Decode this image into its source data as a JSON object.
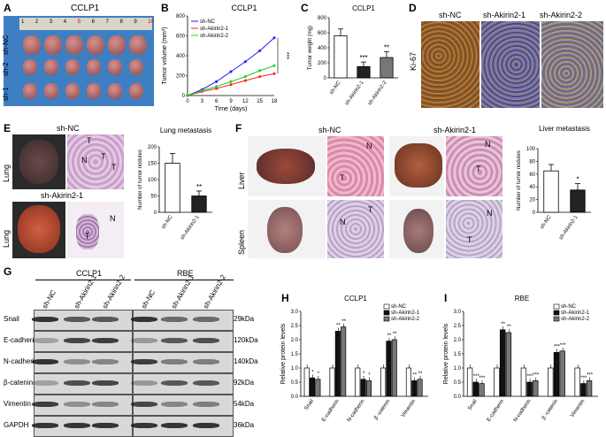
{
  "panels": {
    "A": {
      "letter": "A",
      "title": "CCLP1",
      "row_labels": [
        "sh-NC",
        "sh-2",
        "sh-1"
      ],
      "ruler_numbers": [
        "1",
        "2",
        "3",
        "4",
        "5",
        "6",
        "7",
        "8",
        "9",
        "10"
      ]
    },
    "B": {
      "letter": "B",
      "title": "CCLP1",
      "xlabel": "Time (days)",
      "ylabel": "Tumor volume (mm³)",
      "significance": "***",
      "chart_data": {
        "type": "line",
        "x": [
          0,
          3,
          6,
          9,
          12,
          15,
          18
        ],
        "xticks": [
          "0",
          "3",
          "6",
          "9",
          "12",
          "15",
          "18"
        ],
        "yticks": [
          "0",
          "200",
          "400",
          "600",
          "800"
        ],
        "ylim": [
          0,
          800
        ],
        "series": [
          {
            "name": "sh-NC",
            "color": "#1a1aff",
            "values": [
              0,
              60,
              140,
              240,
              340,
              450,
              580
            ]
          },
          {
            "name": "sh-Akirin2-1",
            "color": "#ff2020",
            "values": [
              0,
              40,
              70,
              110,
              150,
              190,
              220
            ]
          },
          {
            "name": "sh-Akirin2-2",
            "color": "#22cc22",
            "values": [
              0,
              50,
              90,
              140,
              190,
              250,
              300
            ]
          }
        ]
      }
    },
    "C": {
      "letter": "C",
      "title": "CCLP1",
      "ylabel": "Tumor weight (mg)",
      "chart_data": {
        "type": "bar",
        "categories": [
          "sh-NC",
          "sh-Akirin2-1",
          "sh-Akirin2-2"
        ],
        "values": [
          560,
          150,
          270
        ],
        "errors": [
          90,
          60,
          80
        ],
        "ylim": [
          0,
          800
        ],
        "yticks": [
          "0",
          "200",
          "400",
          "600",
          "800"
        ],
        "colors": [
          "#ffffff",
          "#222222",
          "#777777"
        ],
        "significance": [
          "",
          "***",
          "**"
        ]
      }
    },
    "D": {
      "letter": "D",
      "labels": [
        "sh-NC",
        "sh-Akirin2-1",
        "sh-Akirin2-2"
      ],
      "ylabel": "Ki-67"
    },
    "E": {
      "letter": "E",
      "top_label": "sh-NC",
      "bottom_label": "sh-Akirin2-1",
      "organ": "Lung",
      "markers": [
        "T",
        "N",
        "T",
        "T",
        "N",
        "T"
      ],
      "title": "Lung metastasis",
      "ylabel": "Number of tumor nodules",
      "chart_data": {
        "type": "bar",
        "categories": [
          "sh-NC",
          "sh-Akirin2-1"
        ],
        "values": [
          150,
          50
        ],
        "errors": [
          30,
          15
        ],
        "ylim": [
          0,
          200
        ],
        "yticks": [
          "0",
          "50",
          "100",
          "150",
          "200"
        ],
        "colors": [
          "#ffffff",
          "#222222"
        ],
        "significance": [
          "",
          "**"
        ]
      }
    },
    "F": {
      "letter": "F",
      "labels": [
        "sh-NC",
        "sh-Akirin2-1"
      ],
      "organs": [
        "Liver",
        "Spleen"
      ],
      "markers": [
        "N",
        "T",
        "N",
        "T",
        "T",
        "N",
        "N",
        "T"
      ],
      "title": "Liver metastasis",
      "ylabel": "Number of tumor nodules",
      "chart_data": {
        "type": "bar",
        "categories": [
          "sh-NC",
          "sh-Akirin2-1"
        ],
        "values": [
          65,
          35
        ],
        "errors": [
          10,
          10
        ],
        "ylim": [
          0,
          100
        ],
        "yticks": [
          "0",
          "20",
          "40",
          "60",
          "80",
          "100"
        ],
        "colors": [
          "#ffffff",
          "#222222"
        ],
        "significance": [
          "",
          "*"
        ]
      }
    },
    "G": {
      "letter": "G",
      "groups": [
        "CCLP1",
        "RBE"
      ],
      "lanes": [
        "sh-NC",
        "sh-Akirin2-1",
        "sh-Akirin2-2",
        "sh-NC",
        "sh-Akirin2-1",
        "sh-Akirin2-2"
      ],
      "proteins": [
        "Snail",
        "E-cadherin",
        "N-cadherin",
        "β-catenin",
        "Vimentin",
        "GAPDH"
      ],
      "sizes": [
        "29kDa",
        "120kDa",
        "140kDa",
        "92kDa",
        "54kDa",
        "36kDa"
      ]
    },
    "H": {
      "letter": "H",
      "title": "CCLP1",
      "ylabel": "Relative protein levels",
      "chart_data": {
        "type": "bar",
        "categories": [
          "Snail",
          "E-cadherin",
          "N-cadherin",
          "β -catenin",
          "Vimentin"
        ],
        "ylim": [
          0,
          3
        ],
        "yticks": [
          "0.0",
          "0.5",
          "1.0",
          "1.5",
          "2.0",
          "2.5",
          "3.0"
        ],
        "series": [
          {
            "name": "sh-NC",
            "color": "#ffffff",
            "values": [
              1.0,
              1.0,
              1.0,
              1.0,
              1.0
            ]
          },
          {
            "name": "sh-Akirin2-1",
            "color": "#111111",
            "values": [
              0.65,
              2.3,
              0.6,
              1.95,
              0.55
            ]
          },
          {
            "name": "sh-Akirin2-2",
            "color": "#777777",
            "values": [
              0.6,
              2.45,
              0.55,
              2.0,
              0.6
            ]
          }
        ],
        "significance": [
          [
            "",
            "*",
            "*"
          ],
          [
            "",
            "**",
            "**"
          ],
          [
            "",
            "*",
            "*"
          ],
          [
            "",
            "**",
            "**"
          ],
          [
            "",
            "**",
            "**"
          ]
        ]
      }
    },
    "I": {
      "letter": "I",
      "title": "RBE",
      "ylabel": "Relative protein levels",
      "chart_data": {
        "type": "bar",
        "categories": [
          "Snail",
          "E-cadherin",
          "N-cadherin",
          "β -catenin",
          "Vimentin"
        ],
        "ylim": [
          0,
          3
        ],
        "yticks": [
          "0.0",
          "0.5",
          "1.0",
          "1.5",
          "2.0",
          "2.5",
          "3.0"
        ],
        "series": [
          {
            "name": "sh-NC",
            "color": "#ffffff",
            "values": [
              1.0,
              1.0,
              1.0,
              1.0,
              1.0
            ]
          },
          {
            "name": "sh-Akirin2-1",
            "color": "#111111",
            "values": [
              0.5,
              2.35,
              0.5,
              1.55,
              0.45
            ]
          },
          {
            "name": "sh-Akirin2-2",
            "color": "#777777",
            "values": [
              0.45,
              2.25,
              0.55,
              1.6,
              0.55
            ]
          }
        ],
        "significance": [
          [
            "",
            "***",
            "***"
          ],
          [
            "",
            "**",
            "**"
          ],
          [
            "",
            "***",
            "***"
          ],
          [
            "",
            "***",
            "***"
          ],
          [
            "",
            "***",
            "***"
          ]
        ]
      }
    }
  }
}
